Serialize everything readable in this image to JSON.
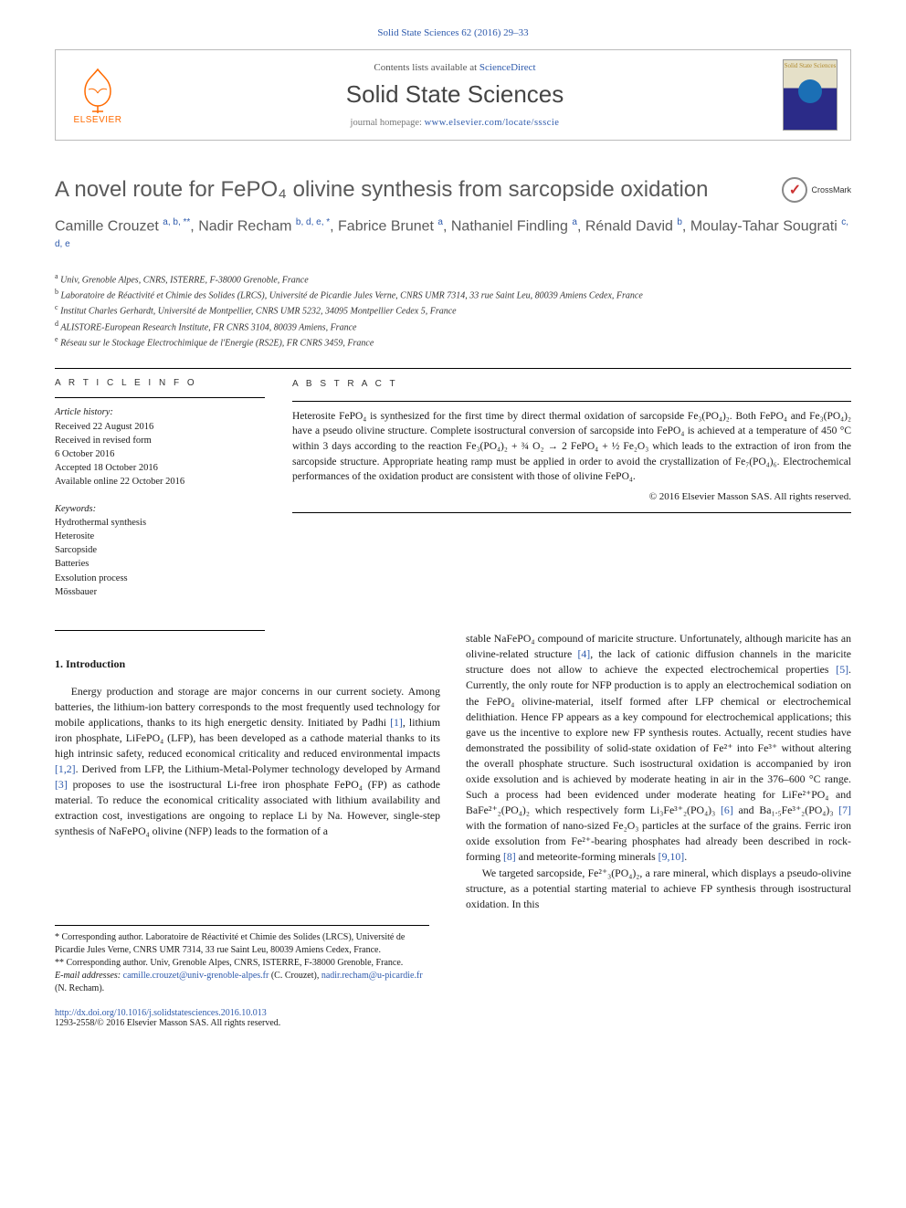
{
  "colors": {
    "link": "#2e5aac",
    "orange": "#ff6a00",
    "text": "#1a1a1a",
    "heading_gray": "#5a5a5a"
  },
  "header": {
    "citation": "Solid State Sciences 62 (2016) 29–33",
    "contents_prefix": "Contents lists available at ",
    "contents_link": "ScienceDirect",
    "journal": "Solid State Sciences",
    "homepage_prefix": "journal homepage: ",
    "homepage_url": "www.elsevier.com/locate/ssscie",
    "publisher_label": "ELSEVIER",
    "cover_title": "Solid State Sciences"
  },
  "crossmark": {
    "label": "CrossMark"
  },
  "title": "A novel route for FePO₄ olivine synthesis from sarcopside oxidation",
  "authors_html": "Camille Crouzet <sup>a, b, **</sup>, Nadir Recham <sup>b, d, e, *</sup>, Fabrice Brunet <sup>a</sup>, Nathaniel Findling <sup>a</sup>, Rénald David <sup>b</sup>, Moulay-Tahar Sougrati <sup>c, d, e</sup>",
  "affiliations": [
    {
      "key": "a",
      "text": "Univ, Grenoble Alpes, CNRS, ISTERRE, F-38000 Grenoble, France"
    },
    {
      "key": "b",
      "text": "Laboratoire de Réactivité et Chimie des Solides (LRCS), Université de Picardie Jules Verne, CNRS UMR 7314, 33 rue Saint Leu, 80039 Amiens Cedex, France"
    },
    {
      "key": "c",
      "text": "Institut Charles Gerhardt, Université de Montpellier, CNRS UMR 5232, 34095 Montpellier Cedex 5, France"
    },
    {
      "key": "d",
      "text": "ALISTORE-European Research Institute, FR CNRS 3104, 80039 Amiens, France"
    },
    {
      "key": "e",
      "text": "Réseau sur le Stockage Electrochimique de l'Energie (RS2E), FR CNRS 3459, France"
    }
  ],
  "article_info": {
    "heading": "A R T I C L E   I N F O",
    "history_label": "Article history:",
    "history": [
      "Received 22 August 2016",
      "Received in revised form",
      "6 October 2016",
      "Accepted 18 October 2016",
      "Available online 22 October 2016"
    ],
    "keywords_label": "Keywords:",
    "keywords": [
      "Hydrothermal synthesis",
      "Heterosite",
      "Sarcopside",
      "Batteries",
      "Exsolution process",
      "Mössbauer"
    ]
  },
  "abstract": {
    "heading": "A B S T R A C T",
    "text": "Heterosite FePO₄ is synthesized for the first time by direct thermal oxidation of sarcopside Fe₃(PO₄)₂. Both FePO₄ and Fe₃(PO₄)₂ have a pseudo olivine structure. Complete isostructural conversion of sarcopside into FePO₄ is achieved at a temperature of 450 °C within 3 days according to the reaction Fe₃(PO₄)₂ + ¾ O₂ → 2 FePO₄ + ½ Fe₂O₃ which leads to the extraction of iron from the sarcopside structure. Appropriate heating ramp must be applied in order to avoid the crystallization of Fe₇(PO₄)₆. Electrochemical performances of the oxidation product are consistent with those of olivine FePO₄.",
    "copyright": "© 2016 Elsevier Masson SAS. All rights reserved."
  },
  "sections": {
    "s1_head": "1. Introduction",
    "p1": "Energy production and storage are major concerns in our current society. Among batteries, the lithium-ion battery corresponds to the most frequently used technology for mobile applications, thanks to its high energetic density. Initiated by Padhi [1], lithium iron phosphate, LiFePO₄ (LFP), has been developed as a cathode material thanks to its high intrinsic safety, reduced economical criticality and reduced environmental impacts [1,2]. Derived from LFP, the Lithium-Metal-Polymer technology developed by Armand [3] proposes to use the isostructural Li-free iron phosphate FePO₄ (FP) as cathode material. To reduce the economical criticality associated with lithium availability and extraction cost, investigations are ongoing to replace Li by Na. However, single-step synthesis of NaFePO₄ olivine (NFP) leads to the formation of a",
    "p2": "stable NaFePO₄ compound of maricite structure. Unfortunately, although maricite has an olivine-related structure [4], the lack of cationic diffusion channels in the maricite structure does not allow to achieve the expected electrochemical properties [5]. Currently, the only route for NFP production is to apply an electrochemical sodiation on the FePO₄ olivine-material, itself formed after LFP chemical or electrochemical delithiation. Hence FP appears as a key compound for electrochemical applications; this gave us the incentive to explore new FP synthesis routes. Actually, recent studies have demonstrated the possibility of solid-state oxidation of Fe²⁺ into Fe³⁺ without altering the overall phosphate structure. Such isostructural oxidation is accompanied by iron oxide exsolution and is achieved by moderate heating in air in the 376–600 °C range. Such a process had been evidenced under moderate heating for LiFe²⁺PO₄ and BaFe²⁺₂(PO₄)₂ which respectively form Li₃Fe³⁺₂(PO₄)₃ [6] and Ba₁.₅Fe³⁺₂(PO₄)₃ [7] with the formation of nano-sized Fe₂O₃ particles at the surface of the grains. Ferric iron oxide exsolution from Fe²⁺-bearing phosphates had already been described in rock-forming [8] and meteorite-forming minerals [9,10].",
    "p3": "We targeted sarcopside, Fe²⁺₃(PO₄)₂, a rare mineral, which displays a pseudo-olivine structure, as a potential starting material to achieve FP synthesis through isostructural oxidation. In this"
  },
  "footnotes": {
    "corr1": "* Corresponding author. Laboratoire de Réactivité et Chimie des Solides (LRCS), Université de Picardie Jules Verne, CNRS UMR 7314, 33 rue Saint Leu, 80039 Amiens Cedex, France.",
    "corr2": "** Corresponding author. Univ, Grenoble Alpes, CNRS, ISTERRE, F-38000 Grenoble, France.",
    "email_label": "E-mail addresses:",
    "email1": "camille.crouzet@univ-grenoble-alpes.fr",
    "email1_who": "(C. Crouzet),",
    "email2": "nadir.recham@u-picardie.fr",
    "email2_who": "(N. Recham)."
  },
  "footer": {
    "doi": "http://dx.doi.org/10.1016/j.solidstatesciences.2016.10.013",
    "issn_line": "1293-2558/© 2016 Elsevier Masson SAS. All rights reserved."
  }
}
